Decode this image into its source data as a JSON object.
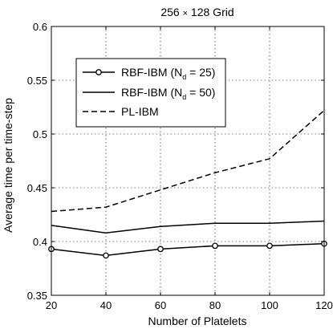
{
  "chart_data": {
    "type": "line",
    "title_main": "256 ",
    "title_times": "×",
    "title_rest": " 128 Grid",
    "xlabel": "Number of Platelets",
    "ylabel": "Average time per time-step",
    "xlim": [
      20,
      120
    ],
    "ylim": [
      0.35,
      0.6
    ],
    "x_ticks": [
      20,
      40,
      60,
      80,
      100,
      120
    ],
    "x_tick_labels": [
      "20",
      "40",
      "60",
      "80",
      "100",
      "120"
    ],
    "y_ticks": [
      0.35,
      0.4,
      0.45,
      0.5,
      0.55,
      0.6
    ],
    "y_tick_labels": [
      "0.35",
      "0.4",
      "0.45",
      "0.5",
      "0.55",
      "0.6"
    ],
    "grid": true,
    "legend_position": "upper-left",
    "x": [
      20,
      40,
      60,
      80,
      100,
      120
    ],
    "series": [
      {
        "legend_main": "RBF-IBM (N",
        "legend_sub": "d",
        "legend_tail": " = 25)",
        "style": "solid-circle",
        "color": "#000000",
        "values": [
          0.393,
          0.387,
          0.393,
          0.396,
          0.396,
          0.398
        ]
      },
      {
        "legend_main": "RBF-IBM (N",
        "legend_sub": "d",
        "legend_tail": " = 50)",
        "style": "solid",
        "color": "#000000",
        "values": [
          0.415,
          0.408,
          0.414,
          0.417,
          0.417,
          0.419
        ]
      },
      {
        "legend_main": "PL-IBM",
        "legend_sub": "",
        "legend_tail": "",
        "style": "dashed",
        "color": "#000000",
        "values": [
          0.428,
          0.432,
          0.448,
          0.464,
          0.477,
          0.522
        ]
      }
    ]
  }
}
